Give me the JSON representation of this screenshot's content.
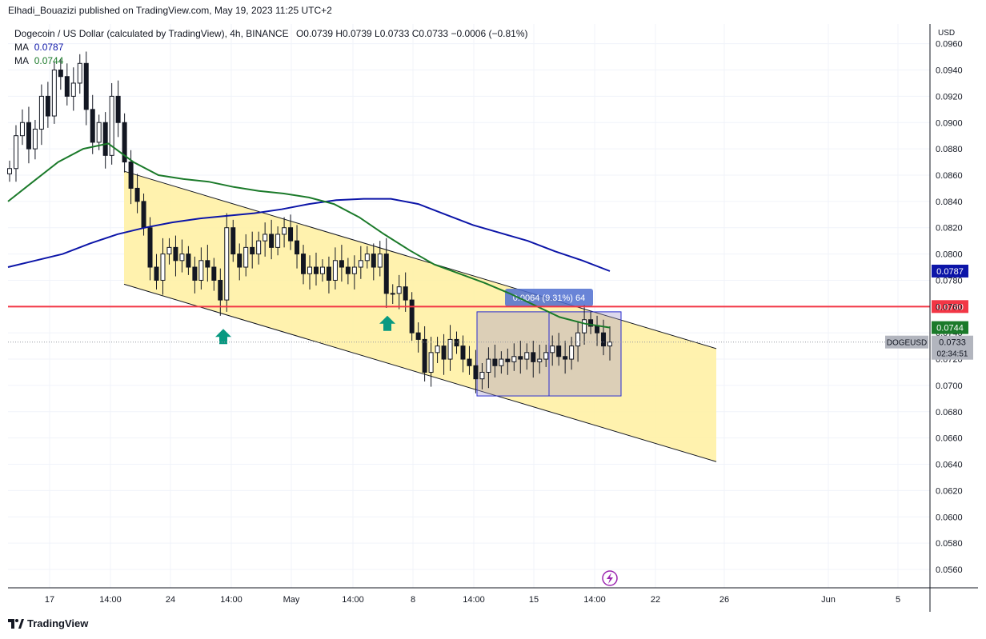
{
  "header": {
    "publisher": "Elhadi_Bouazizi published on TradingView.com, May 19, 2023 11:25 UTC+2"
  },
  "legend": {
    "title": "Dogecoin / US Dollar (calculated by TradingView), 4h, BINANCE",
    "ohlc": "O0.0739 H0.0739 L0.0733 C0.0733 −0.0006 (−0.81%)",
    "ma1_label": "MA",
    "ma1_value": "0.0787",
    "ma2_label": "MA",
    "ma2_value": "0.0744"
  },
  "footer": {
    "brand": "TradingView"
  },
  "chart_data": {
    "type": "candlestick",
    "currency_label": "USD",
    "y_ticks": [
      "0.0960",
      "0.0940",
      "0.0920",
      "0.0900",
      "0.0880",
      "0.0860",
      "0.0840",
      "0.0820",
      "0.0800",
      "0.0780",
      "0.0760",
      "0.0740",
      "0.0720",
      "0.0700",
      "0.0680",
      "0.0660",
      "0.0640",
      "0.0620",
      "0.0600",
      "0.0580",
      "0.0560"
    ],
    "ylim": [
      0.0546,
      0.0975
    ],
    "x_ticks": [
      "17",
      "14:00",
      "24",
      "14:00",
      "May",
      "14:00",
      "8",
      "14:00",
      "15",
      "14:00",
      "22",
      "26",
      "Jun",
      "5"
    ],
    "grid": true,
    "close_series": [
      0.0865,
      0.089,
      0.09,
      0.088,
      0.0895,
      0.092,
      0.0905,
      0.094,
      0.0935,
      0.092,
      0.093,
      0.0945,
      0.091,
      0.0885,
      0.09,
      0.0875,
      0.092,
      0.09,
      0.087,
      0.085,
      0.084,
      0.082,
      0.079,
      0.078,
      0.08,
      0.0805,
      0.0795,
      0.08,
      0.079,
      0.078,
      0.0795,
      0.079,
      0.078,
      0.0765,
      0.082,
      0.08,
      0.079,
      0.0805,
      0.08,
      0.081,
      0.0815,
      0.0805,
      0.0815,
      0.082,
      0.081,
      0.08,
      0.0785,
      0.079,
      0.0785,
      0.079,
      0.078,
      0.0795,
      0.079,
      0.0785,
      0.079,
      0.0795,
      0.08,
      0.079,
      0.08,
      0.077,
      0.077,
      0.0775,
      0.0765,
      0.074,
      0.0735,
      0.071,
      0.0725,
      0.073,
      0.072,
      0.0735,
      0.073,
      0.072,
      0.0715,
      0.0705,
      0.071,
      0.072,
      0.0715,
      0.072,
      0.0718,
      0.0722,
      0.072,
      0.0725,
      0.0718,
      0.072,
      0.0725,
      0.073,
      0.0722,
      0.072,
      0.073,
      0.074,
      0.075,
      0.0745,
      0.074,
      0.073,
      0.0733
    ],
    "ma_series": [
      {
        "name": "MA",
        "value_label": "0.0787",
        "color": "#0c15a8",
        "values": [
          0.079,
          0.0795,
          0.08,
          0.0808,
          0.0815,
          0.082,
          0.0824,
          0.0827,
          0.0829,
          0.0831,
          0.0834,
          0.0838,
          0.0841,
          0.0842,
          0.0842,
          0.0838,
          0.083,
          0.0822,
          0.0816,
          0.081,
          0.0802,
          0.0795,
          0.0787
        ]
      },
      {
        "name": "MA",
        "value_label": "0.0744",
        "color": "#1b7a2a",
        "values": [
          0.084,
          0.0855,
          0.087,
          0.088,
          0.0884,
          0.087,
          0.086,
          0.0857,
          0.0855,
          0.0851,
          0.0848,
          0.0846,
          0.0843,
          0.0838,
          0.0828,
          0.0815,
          0.0803,
          0.0792,
          0.0785,
          0.0778,
          0.077,
          0.0761,
          0.0752,
          0.0747,
          0.0744
        ]
      }
    ],
    "horizontal_line": {
      "value": 0.076,
      "label": "0.0760",
      "color": "#f23645"
    },
    "price_badges": [
      {
        "value": 0.0787,
        "label": "0.0787",
        "color": "#0c15a8"
      },
      {
        "value": 0.0744,
        "label": "0.0744",
        "color": "#1b7a2a"
      }
    ],
    "current_price": {
      "symbol": "DOGEUSD",
      "label": "0.0733",
      "countdown": "02:34:51"
    },
    "channel": {
      "upper_start": 0.0863,
      "upper_end": 0.0728,
      "lower_start": 0.0777,
      "lower_end": 0.0642,
      "color": "#fff0a0"
    },
    "measure_box": {
      "top": 0.0756,
      "bottom": 0.0692,
      "label": "0.0064 (9.31%) 64"
    },
    "arrows": [
      {
        "value": 0.074
      },
      {
        "value": 0.075
      }
    ]
  }
}
